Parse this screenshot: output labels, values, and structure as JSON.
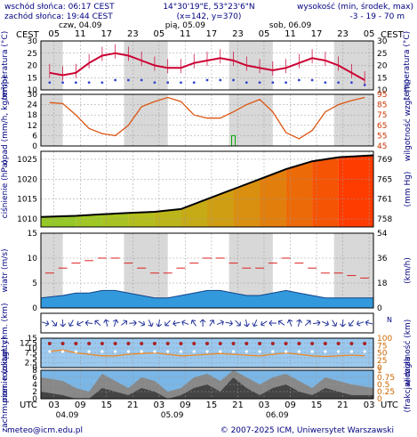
{
  "header": {
    "sunrise": "wschód słońca: 06:17 CEST",
    "sunset": "zachód słońca: 19:44 CEST",
    "coords": "14°30'19\"E, 53°23'6\"N",
    "grid": "(x=142,  y=370)",
    "altitude_label": "wysokość (min, środek, max)",
    "altitude_values": "-3 - 19 - 70 m"
  },
  "time_axis": {
    "timezone_label": "CEST",
    "hour_labels": [
      "05",
      "11",
      "17",
      "23",
      "05",
      "11",
      "17",
      "23",
      "05",
      "11",
      "17",
      "23",
      "05"
    ],
    "days_top": [
      "czw, 04.09",
      "pią, 05.09",
      "sob, 06.09"
    ],
    "utc_label": "UTC",
    "utc_hours": [
      "03",
      "09",
      "15",
      "21",
      "03",
      "09",
      "15",
      "21",
      "03",
      "09",
      "15",
      "21",
      "03"
    ],
    "days_bottom": [
      "04.09",
      "05.09",
      "06.09"
    ]
  },
  "footer": {
    "email": "meteo@icm.edu.pl",
    "copyright": "© 2007-2025 ICM, Uniwersytet Warszawski"
  },
  "colors": {
    "temperature": "#cc0033",
    "humidity": "#dd5511",
    "wind": "#2277cc",
    "precip": "#00aa00",
    "cloud_dark": "#444444",
    "cloud_mid": "#888888",
    "night_bg": "#d8d8d8"
  },
  "chart_data": [
    {
      "type": "line",
      "panel": "temperatura",
      "ylabel": "temperatura (°C)",
      "ylim": [
        10,
        30
      ],
      "ticks": [
        10,
        15,
        20,
        25,
        30
      ],
      "x_hours": [
        2,
        5,
        8,
        11,
        14,
        17,
        20,
        23,
        26,
        29,
        32,
        35,
        38,
        41,
        44,
        47,
        50,
        53,
        56,
        59,
        62,
        65,
        68,
        71,
        74
      ],
      "series": [
        {
          "name": "temperatura",
          "values": [
            17,
            16,
            17,
            21,
            24,
            25,
            24,
            22,
            20,
            19,
            19,
            21,
            22,
            23,
            22,
            20,
            19,
            18,
            19,
            21,
            23,
            22,
            20,
            17,
            14
          ]
        },
        {
          "name": "punkt rosy",
          "values": [
            13,
            13,
            13,
            13,
            13,
            14,
            14,
            14,
            13,
            13,
            13,
            13,
            14,
            14,
            14,
            13,
            13,
            13,
            13,
            14,
            14,
            13,
            13,
            13,
            12
          ]
        }
      ]
    },
    {
      "type": "line",
      "panel": "opad / wilgotność",
      "ylabel": "opad (mm/h, kg/m²/h)",
      "ylabel_right": "wilgotność wzgl. (%)",
      "ylim": [
        0,
        30
      ],
      "ticks": [
        0,
        6,
        12,
        18,
        24,
        30
      ],
      "ticks_right": [
        45,
        55,
        65,
        75,
        85,
        95
      ],
      "x_hours": [
        2,
        5,
        8,
        11,
        14,
        17,
        20,
        23,
        26,
        29,
        32,
        35,
        38,
        41,
        44,
        47,
        50,
        53,
        56,
        59,
        62,
        65,
        68,
        71,
        74
      ],
      "series": [
        {
          "name": "wilgotność",
          "values": [
            87,
            86,
            75,
            62,
            57,
            55,
            65,
            83,
            88,
            92,
            88,
            75,
            72,
            72,
            78,
            85,
            90,
            78,
            58,
            52,
            60,
            78,
            85,
            89,
            92
          ]
        },
        {
          "name": "opad",
          "values": [
            0,
            0,
            0,
            0,
            0,
            0,
            0,
            0,
            0,
            0,
            0,
            0,
            0,
            0,
            6,
            0,
            0,
            0,
            0,
            0,
            0,
            0,
            0,
            0,
            0
          ]
        }
      ]
    },
    {
      "type": "area",
      "panel": "ciśnienie",
      "ylabel": "ciśnienie (hPa)",
      "ylabel_right": "(mm Hg)",
      "ylim": [
        1008,
        1027
      ],
      "ticks": [
        1010,
        1015,
        1020,
        1025
      ],
      "ticks_right": [
        758,
        761,
        765,
        769
      ],
      "x_hours": [
        2,
        8,
        14,
        20,
        26,
        32,
        38,
        44,
        50,
        56,
        62,
        68,
        74
      ],
      "values": [
        1010.5,
        1010.8,
        1011.2,
        1011.5,
        1011.8,
        1012.5,
        1015,
        1017.5,
        1020,
        1022.5,
        1024.5,
        1025.5,
        1026
      ]
    },
    {
      "type": "area",
      "panel": "wiatr",
      "ylabel": "wiatr (m/s)",
      "ylabel_right": "(km/h)",
      "ylim": [
        0,
        15
      ],
      "ticks": [
        0,
        5,
        10,
        15
      ],
      "ticks_right": [
        0,
        18,
        36,
        54
      ],
      "x_hours": [
        2,
        5,
        8,
        11,
        14,
        17,
        20,
        23,
        26,
        29,
        32,
        35,
        38,
        41,
        44,
        47,
        50,
        53,
        56,
        59,
        62,
        65,
        68,
        71,
        74
      ],
      "series": [
        {
          "name": "prędkość",
          "values": [
            2,
            2.5,
            3,
            3,
            3.5,
            3.5,
            3,
            2.5,
            2,
            2,
            2.5,
            3,
            3.5,
            3.5,
            3,
            2.5,
            2.5,
            3,
            3.5,
            3,
            2.5,
            2,
            2,
            2,
            2
          ]
        },
        {
          "name": "porywy",
          "values": [
            7,
            8,
            9,
            9.5,
            10,
            10,
            9,
            8,
            7,
            7,
            8,
            9,
            10,
            10,
            9,
            8,
            8,
            9,
            10,
            9,
            8,
            7,
            7,
            6.5,
            6
          ]
        }
      ]
    },
    {
      "type": "scatter",
      "panel": "pion. rozciągł. chm. / widzialność",
      "ylabel": "pion. rozciągł. chm. (km)",
      "ylabel_right": "widzialność (km)",
      "ylim": [
        0,
        15
      ],
      "ticks": [
        0.0,
        2.5,
        5.0,
        7.5,
        10.0,
        12.5,
        15.0
      ],
      "ticks_right": [
        0,
        25,
        50,
        75,
        100
      ],
      "x_hours": [
        2,
        5,
        8,
        11,
        14,
        17,
        20,
        23,
        26,
        29,
        32,
        35,
        38,
        41,
        44,
        47,
        50,
        53,
        56,
        59,
        62,
        65,
        68,
        71,
        74
      ],
      "series": [
        {
          "name": "widzialność",
          "values": [
            55,
            60,
            50,
            45,
            40,
            40,
            45,
            48,
            50,
            45,
            40,
            42,
            45,
            48,
            45,
            42,
            40,
            45,
            50,
            45,
            40,
            38,
            40,
            42,
            40
          ]
        }
      ]
    },
    {
      "type": "area",
      "panel": "zachmurzenie / mgła",
      "ylabel": "zachmurzenie (oktanty)",
      "ylabel_right": "(frakcja) mgła",
      "ylim": [
        0,
        8
      ],
      "ticks": [
        0,
        2,
        4,
        6,
        8
      ],
      "ticks_right": [
        0,
        0.25,
        0.5,
        0.75,
        1
      ],
      "x_hours": [
        2,
        5,
        8,
        11,
        14,
        17,
        20,
        23,
        26,
        29,
        32,
        35,
        38,
        41,
        44,
        47,
        50,
        53,
        56,
        59,
        62,
        65,
        68,
        71,
        74
      ],
      "series": [
        {
          "name": "całkowite",
          "values": [
            6,
            5,
            3,
            2,
            7,
            5,
            3,
            6,
            5,
            2,
            3,
            6,
            7,
            5,
            8,
            6,
            4,
            6,
            7,
            5,
            3,
            6,
            5,
            4,
            3
          ]
        },
        {
          "name": "niskie",
          "values": [
            2,
            1,
            0,
            0,
            3,
            2,
            1,
            3,
            2,
            0,
            1,
            3,
            4,
            2,
            6,
            3,
            1,
            3,
            4,
            2,
            1,
            3,
            2,
            1,
            1
          ]
        }
      ]
    }
  ]
}
